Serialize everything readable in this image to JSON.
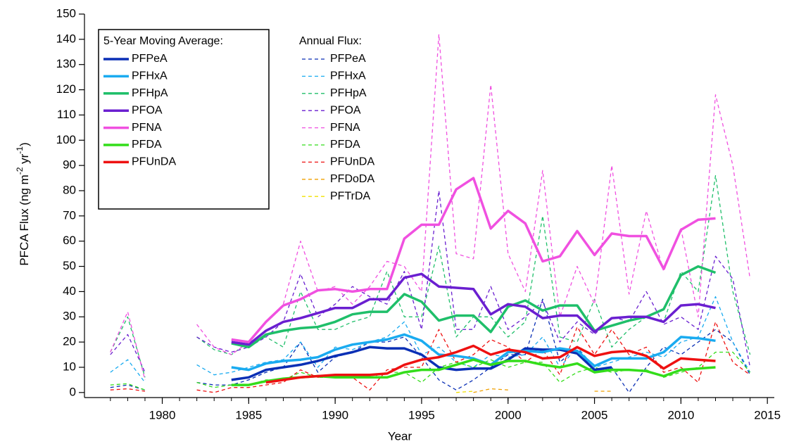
{
  "chart_data": {
    "type": "line",
    "x_label": "Year",
    "y_label": [
      "PFCA Flux (ng m",
      "-2",
      " yr",
      "-1",
      ")"
    ],
    "legend_titles": [
      "5-Year Moving Average:",
      "Annual Flux:"
    ],
    "x": [
      1977,
      1978,
      1979,
      1980,
      1981,
      1982,
      1983,
      1984,
      1985,
      1986,
      1987,
      1988,
      1989,
      1990,
      1991,
      1992,
      1993,
      1994,
      1995,
      1996,
      1997,
      1998,
      1999,
      2000,
      2001,
      2002,
      2003,
      2004,
      2005,
      2006,
      2007,
      2008,
      2009,
      2010,
      2011,
      2012,
      2013,
      2014
    ],
    "xlim": [
      1975.5,
      2015.4
    ],
    "xticks": [
      1980,
      1985,
      1990,
      1995,
      2000,
      2005,
      2010,
      2015
    ],
    "ylim": [
      -2,
      150
    ],
    "yticks": [
      0,
      10,
      20,
      30,
      40,
      50,
      60,
      70,
      80,
      90,
      100,
      110,
      120,
      130,
      140,
      150
    ],
    "series": [
      {
        "name": "PFPeA",
        "group": 0,
        "style": "solid",
        "color": "#0a2fb5",
        "values": [
          null,
          null,
          null,
          null,
          null,
          null,
          null,
          5,
          6,
          9,
          10,
          11,
          12.5,
          14.5,
          16,
          18,
          17.5,
          17.5,
          15,
          10,
          9,
          9.5,
          9.5,
          13,
          17.5,
          17,
          17,
          15.5,
          9,
          10,
          null,
          null,
          null,
          null,
          null,
          null,
          null,
          null
        ]
      },
      {
        "name": "PFHxA",
        "group": 0,
        "style": "solid",
        "color": "#1aabf0",
        "values": [
          null,
          null,
          null,
          null,
          null,
          null,
          null,
          10,
          9,
          11.5,
          12.5,
          13,
          14,
          17,
          19,
          20,
          21,
          23,
          20.5,
          15,
          14.5,
          13.5,
          11,
          16,
          16.5,
          16,
          17.5,
          16.5,
          10.5,
          13.5,
          13.5,
          13.5,
          16,
          22,
          21.5,
          20.5,
          null,
          null
        ]
      },
      {
        "name": "PFHpA",
        "group": 0,
        "style": "solid",
        "color": "#1fbf6a",
        "values": [
          null,
          null,
          null,
          null,
          null,
          null,
          null,
          19.5,
          18,
          23,
          24.5,
          25.5,
          26,
          28,
          31,
          32,
          32,
          39,
          36,
          28.5,
          30.5,
          30.5,
          24,
          34,
          36.5,
          32.5,
          34.5,
          34.5,
          24.5,
          26.5,
          28.5,
          30,
          33,
          46.5,
          50,
          47.5,
          null,
          null
        ]
      },
      {
        "name": "PFOA",
        "group": 0,
        "style": "solid",
        "color": "#6a1fd0",
        "values": [
          null,
          null,
          null,
          null,
          null,
          null,
          null,
          20,
          19,
          24.5,
          28,
          29.5,
          31.5,
          33.5,
          33.5,
          37,
          37,
          45.5,
          47,
          42,
          41.5,
          41,
          31,
          35,
          34,
          29.5,
          30.5,
          30.5,
          24,
          29.5,
          30,
          30,
          28,
          34.5,
          35,
          33.5,
          null,
          null
        ]
      },
      {
        "name": "PFNA",
        "group": 0,
        "style": "solid",
        "color": "#f050e0",
        "values": [
          null,
          null,
          null,
          null,
          null,
          null,
          null,
          21,
          20,
          28,
          34.5,
          37,
          40.5,
          41,
          40,
          41,
          41,
          61,
          66.5,
          66.5,
          80.5,
          85,
          65,
          72,
          67,
          52,
          54,
          64,
          54.5,
          63,
          62,
          62,
          49,
          64.5,
          68.5,
          69,
          null,
          null
        ]
      },
      {
        "name": "PFDA",
        "group": 0,
        "style": "solid",
        "color": "#33dd1a",
        "values": [
          null,
          null,
          null,
          null,
          null,
          null,
          null,
          3,
          3,
          4.5,
          5.5,
          6,
          6.5,
          6,
          6,
          6,
          6,
          8,
          9,
          9,
          11,
          13,
          11,
          12.5,
          12.5,
          11,
          10,
          11.5,
          8,
          9,
          9,
          8.5,
          6.5,
          9,
          9.5,
          10,
          null,
          null
        ]
      },
      {
        "name": "PFUnDA",
        "group": 0,
        "style": "solid",
        "color": "#ee1111",
        "values": [
          null,
          null,
          null,
          null,
          null,
          null,
          null,
          null,
          null,
          4,
          5,
          6,
          6.5,
          7,
          7,
          7,
          7.5,
          11,
          13,
          14,
          16,
          18.5,
          15,
          17,
          16,
          13.5,
          14,
          18,
          14.5,
          16,
          16.5,
          14.5,
          9.5,
          13.5,
          13,
          12.5,
          null,
          null
        ]
      },
      {
        "name": "PFPeA",
        "group": 1,
        "style": "dashed",
        "color": "#0a2fb5",
        "values": [
          2,
          3,
          1,
          null,
          null,
          4,
          3,
          3,
          5,
          8,
          10,
          20,
          8,
          14,
          16,
          20,
          20,
          22,
          14,
          5,
          1,
          5,
          10,
          15,
          15,
          37,
          12,
          18,
          8,
          10,
          0,
          10,
          18,
          15,
          20,
          25,
          20,
          7
        ]
      },
      {
        "name": "PFHxA",
        "group": 1,
        "style": "dashed",
        "color": "#1aabf0",
        "values": [
          8,
          13,
          4,
          null,
          null,
          11,
          7,
          8,
          10,
          12,
          13,
          20,
          10,
          18,
          17,
          20,
          22,
          28,
          15,
          18,
          12,
          10,
          15,
          14,
          15,
          22,
          10,
          18,
          10,
          12,
          14,
          16,
          14,
          20,
          22,
          38,
          20,
          8
        ]
      },
      {
        "name": "PFHpA",
        "group": 1,
        "style": "dashed",
        "color": "#1fbf6a",
        "values": [
          16,
          30,
          6,
          null,
          null,
          22,
          17,
          15,
          20,
          22,
          18,
          40,
          25,
          25,
          28,
          30,
          48,
          30,
          30,
          58,
          22,
          30,
          30,
          22,
          28,
          70,
          22,
          20,
          37,
          18,
          25,
          30,
          28,
          48,
          40,
          86,
          40,
          15
        ]
      },
      {
        "name": "PFOA",
        "group": 1,
        "style": "dashed",
        "color": "#6a1fd0",
        "values": [
          15,
          23,
          8,
          null,
          null,
          22,
          18,
          16,
          18,
          22,
          28,
          47,
          30,
          35,
          42,
          38,
          35,
          48,
          25,
          80,
          25,
          25,
          42,
          25,
          30,
          36,
          20,
          28,
          23,
          30,
          28,
          40,
          27,
          30,
          25,
          54,
          45,
          10
        ]
      },
      {
        "name": "PFNA",
        "group": 1,
        "style": "dashed",
        "color": "#f050e0",
        "values": [
          16,
          32,
          5,
          null,
          null,
          27,
          18,
          15,
          20,
          28,
          35,
          60,
          40,
          42,
          35,
          42,
          52,
          50,
          40,
          142,
          55,
          53,
          122,
          55,
          40,
          88,
          30,
          50,
          35,
          90,
          39,
          72,
          48,
          65,
          30,
          118,
          90,
          45
        ]
      },
      {
        "name": "PFDA",
        "group": 1,
        "style": "dashed",
        "color": "#33dd1a",
        "values": [
          3,
          3.5,
          1,
          null,
          null,
          4,
          2,
          3,
          3,
          5,
          5,
          8,
          6,
          6,
          7,
          6,
          8,
          8,
          4,
          10,
          12,
          10,
          13,
          10,
          12,
          12,
          4,
          8,
          10,
          8,
          9,
          9,
          6,
          8,
          10,
          16,
          16,
          8
        ]
      },
      {
        "name": "PFUnDA",
        "group": 1,
        "style": "dashed",
        "color": "#ee1111",
        "values": [
          1,
          1.5,
          0.5,
          null,
          null,
          1,
          0,
          2,
          2,
          3,
          4,
          9,
          6,
          7,
          6,
          1,
          9,
          10,
          10,
          25,
          12,
          15,
          21,
          18,
          12,
          17,
          7,
          26,
          15,
          25,
          15,
          18,
          8,
          10,
          4,
          28,
          12,
          7
        ]
      },
      {
        "name": "PFDoDA",
        "group": 1,
        "style": "dashed",
        "color": "#f0a000",
        "values": [
          null,
          null,
          null,
          null,
          null,
          null,
          null,
          null,
          null,
          null,
          null,
          null,
          null,
          null,
          null,
          null,
          null,
          null,
          null,
          null,
          null,
          0,
          1.5,
          1,
          null,
          null,
          null,
          null,
          0.5,
          0.5,
          null,
          null,
          null,
          null,
          null,
          null,
          null,
          null
        ]
      },
      {
        "name": "PFTrDA",
        "group": 1,
        "style": "dashed",
        "color": "#f0e000",
        "values": [
          null,
          null,
          null,
          null,
          null,
          null,
          null,
          null,
          null,
          null,
          null,
          null,
          null,
          null,
          null,
          null,
          null,
          null,
          null,
          null,
          0,
          0.5,
          null,
          null,
          null,
          null,
          null,
          null,
          null,
          null,
          null,
          null,
          null,
          null,
          null,
          null,
          null,
          null
        ]
      }
    ]
  }
}
